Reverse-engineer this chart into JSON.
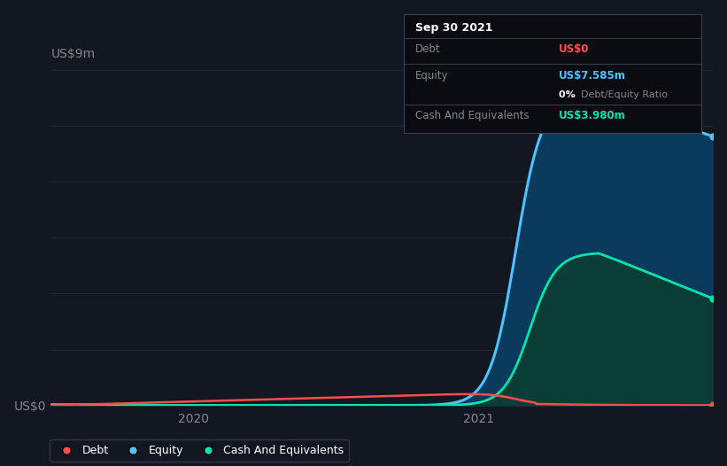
{
  "bg_color": "#131722",
  "plot_bg_color": "#131722",
  "grid_color": "#1e2535",
  "ylabel_top": "US$9m",
  "y0_label": "US$0",
  "xticks_vals": [
    2020.0,
    2021.0
  ],
  "xticks_labels": [
    "2020",
    "2021"
  ],
  "ylim": [
    0,
    9
  ],
  "xlim_start": 2019.5,
  "xlim_end": 2021.82,
  "tooltip": {
    "date": "Sep 30 2021",
    "debt_label": "Debt",
    "debt_value": "US$0",
    "debt_color": "#ff4c4c",
    "equity_label": "Equity",
    "equity_value": "US$7.585m",
    "equity_color": "#4dc3ff",
    "ratio_value": "0%",
    "ratio_label": "Debt/Equity Ratio",
    "cash_label": "Cash And Equivalents",
    "cash_value": "US$3.980m",
    "cash_color": "#00e5b0"
  },
  "legend": [
    {
      "label": "Debt",
      "color": "#ff4c4c"
    },
    {
      "label": "Equity",
      "color": "#4dc3ff"
    },
    {
      "label": "Cash And Equivalents",
      "color": "#00e5b0"
    }
  ],
  "debt_color": "#ff4c4c",
  "equity_color": "#4dc3ff",
  "equity_fill_color": "#0a3a5c",
  "cash_color": "#00e5b0",
  "cash_fill_color": "#0a3d35"
}
